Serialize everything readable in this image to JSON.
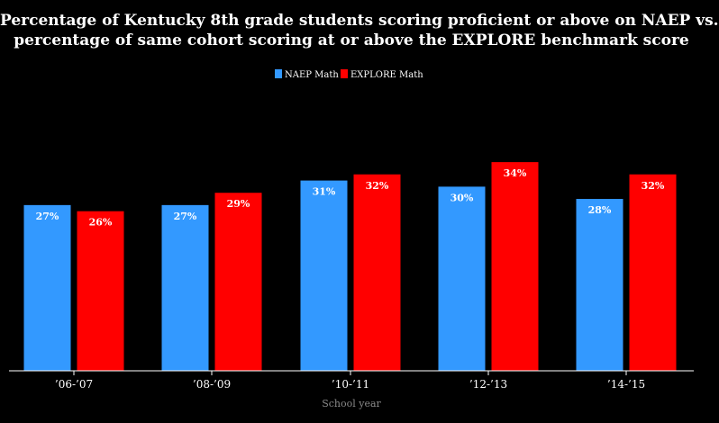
{
  "chart_data": {
    "type": "bar",
    "title_lines": [
      "Percentage of Kentucky 8th grade students scoring proficient or above on NAEP vs.",
      "percentage of same cohort scoring at or above the EXPLORE benchmark score"
    ],
    "xlabel": "School year",
    "ylabel": "",
    "categories": [
      "’06-’07",
      "’08-’09",
      "’10-’11",
      "’12-’13",
      "’14-’15"
    ],
    "series": [
      {
        "name": "NAEP Math",
        "color": "#3399ff",
        "values": [
          27,
          27,
          31,
          30,
          28
        ]
      },
      {
        "name": "EXPLORE Math",
        "color": "#ff0000",
        "values": [
          26,
          29,
          32,
          34,
          32
        ]
      }
    ],
    "value_suffix": "%",
    "ylim": [
      0,
      35
    ],
    "grid": false,
    "legend_position": "top-center"
  }
}
